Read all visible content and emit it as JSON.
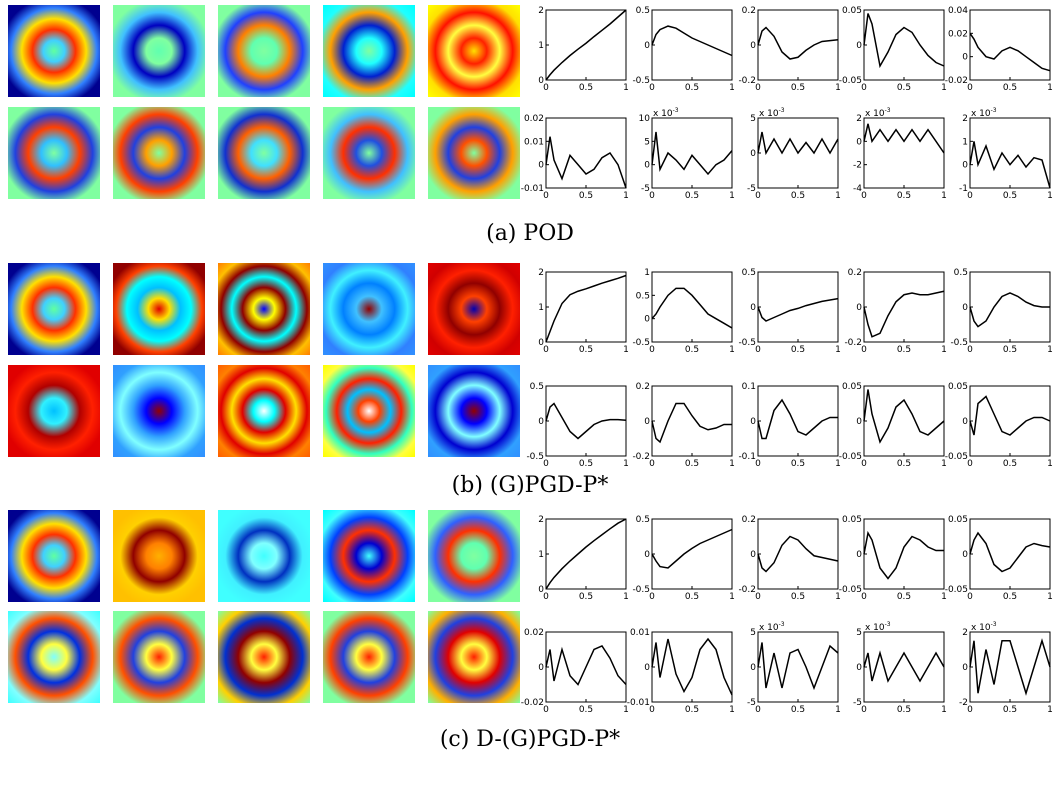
{
  "captions": [
    "(a) POD",
    "(b) (G)PGD-P*",
    "(c) D-(G)PGD-P*"
  ],
  "chart_data": [
    {
      "type": "line",
      "color": "#000000",
      "xlim": [
        0,
        1
      ],
      "xticks": [
        0,
        0.5,
        1
      ],
      "ylim": [
        0,
        2
      ],
      "yticks": [
        0,
        1,
        2
      ],
      "x": [
        0,
        0.05,
        0.1,
        0.2,
        0.3,
        0.4,
        0.5,
        0.6,
        0.7,
        0.8,
        0.9,
        1
      ],
      "values": [
        0,
        0.15,
        0.28,
        0.5,
        0.7,
        0.88,
        1.05,
        1.24,
        1.42,
        1.6,
        1.8,
        2
      ]
    },
    {
      "type": "line",
      "color": "#000000",
      "xlim": [
        0,
        1
      ],
      "xticks": [
        0,
        0.5,
        1
      ],
      "ylim": [
        -0.5,
        0.5
      ],
      "yticks": [
        -0.5,
        0,
        0.5
      ],
      "x": [
        0,
        0.05,
        0.1,
        0.2,
        0.3,
        0.4,
        0.5,
        0.6,
        0.7,
        0.8,
        0.9,
        1
      ],
      "values": [
        0,
        0.15,
        0.22,
        0.27,
        0.24,
        0.17,
        0.1,
        0.05,
        0,
        -0.05,
        -0.1,
        -0.15
      ]
    },
    {
      "type": "line",
      "color": "#000000",
      "xlim": [
        0,
        1
      ],
      "xticks": [
        0,
        0.5,
        1
      ],
      "ylim": [
        -0.2,
        0.2
      ],
      "yticks": [
        -0.2,
        0,
        0.2
      ],
      "x": [
        0,
        0.05,
        0.1,
        0.2,
        0.3,
        0.4,
        0.5,
        0.6,
        0.7,
        0.8,
        0.9,
        1
      ],
      "values": [
        0,
        0.08,
        0.1,
        0.05,
        -0.04,
        -0.08,
        -0.07,
        -0.03,
        0,
        0.02,
        0.025,
        0.03
      ]
    },
    {
      "type": "line",
      "color": "#000000",
      "xlim": [
        0,
        1
      ],
      "xticks": [
        0,
        0.5,
        1
      ],
      "ylim": [
        -0.05,
        0.05
      ],
      "yticks": [
        -0.05,
        0,
        0.05
      ],
      "x": [
        0,
        0.05,
        0.1,
        0.2,
        0.3,
        0.4,
        0.5,
        0.6,
        0.7,
        0.8,
        0.9,
        1
      ],
      "values": [
        0,
        0.045,
        0.03,
        -0.03,
        -0.01,
        0.015,
        0.025,
        0.018,
        0,
        -0.015,
        -0.025,
        -0.03
      ]
    },
    {
      "type": "line",
      "color": "#000000",
      "xlim": [
        0,
        1
      ],
      "xticks": [
        0,
        0.5,
        1
      ],
      "ylim": [
        -0.02,
        0.04
      ],
      "yticks": [
        -0.02,
        0,
        0.02,
        0.04
      ],
      "x": [
        0,
        0.05,
        0.1,
        0.2,
        0.3,
        0.4,
        0.5,
        0.6,
        0.7,
        0.8,
        0.9,
        1
      ],
      "values": [
        0.02,
        0.015,
        0.008,
        0,
        -0.002,
        0.005,
        0.008,
        0.005,
        0,
        -0.005,
        -0.01,
        -0.012
      ]
    },
    {
      "type": "line",
      "color": "#000000",
      "xlim": [
        0,
        1
      ],
      "xticks": [
        0,
        0.5,
        1
      ],
      "ylim": [
        -0.01,
        0.02
      ],
      "yticks": [
        -0.01,
        0,
        0.01,
        0.02
      ],
      "x": [
        0,
        0.05,
        0.1,
        0.2,
        0.3,
        0.4,
        0.5,
        0.6,
        0.7,
        0.8,
        0.9,
        1
      ],
      "values": [
        0,
        0.012,
        0.002,
        -0.006,
        0.004,
        0,
        -0.004,
        -0.002,
        0.003,
        0.005,
        0,
        -0.01
      ]
    },
    {
      "type": "line",
      "color": "#000000",
      "multiplier": "x 10",
      "multiplier_exp": "-3",
      "xlim": [
        0,
        1
      ],
      "xticks": [
        0,
        0.5,
        1
      ],
      "ylim": [
        -5,
        10
      ],
      "yticks": [
        -5,
        0,
        5,
        10
      ],
      "x": [
        0,
        0.05,
        0.1,
        0.2,
        0.3,
        0.4,
        0.5,
        0.6,
        0.7,
        0.8,
        0.9,
        1
      ],
      "values": [
        0,
        7,
        -1,
        2.5,
        1,
        -1,
        2,
        0,
        -2,
        0,
        1,
        3
      ]
    },
    {
      "type": "line",
      "color": "#000000",
      "multiplier": "x 10",
      "multiplier_exp": "-3",
      "xlim": [
        0,
        1
      ],
      "xticks": [
        0,
        0.5,
        1
      ],
      "ylim": [
        -5,
        5
      ],
      "yticks": [
        -5,
        0,
        5
      ],
      "x": [
        0,
        0.05,
        0.1,
        0.2,
        0.3,
        0.4,
        0.5,
        0.6,
        0.7,
        0.8,
        0.9,
        1
      ],
      "values": [
        0,
        3,
        0,
        2,
        0,
        2,
        0,
        1.5,
        0,
        2,
        0,
        2
      ]
    },
    {
      "type": "line",
      "color": "#000000",
      "multiplier": "x 10",
      "multiplier_exp": "-3",
      "xlim": [
        0,
        1
      ],
      "xticks": [
        0,
        0.5,
        1
      ],
      "ylim": [
        -4,
        2
      ],
      "yticks": [
        -4,
        -2,
        0,
        2
      ],
      "x": [
        0,
        0.05,
        0.1,
        0.2,
        0.3,
        0.4,
        0.5,
        0.6,
        0.7,
        0.8,
        0.9,
        1
      ],
      "values": [
        0,
        1.5,
        0,
        1,
        0,
        1,
        0,
        1,
        0,
        1,
        0,
        -1
      ]
    },
    {
      "type": "line",
      "color": "#000000",
      "multiplier": "x 10",
      "multiplier_exp": "-3",
      "xlim": [
        0,
        1
      ],
      "xticks": [
        0,
        0.5,
        1
      ],
      "ylim": [
        -1,
        2
      ],
      "yticks": [
        -1,
        0,
        1,
        2
      ],
      "x": [
        0,
        0.05,
        0.1,
        0.2,
        0.3,
        0.4,
        0.5,
        0.6,
        0.7,
        0.8,
        0.9,
        1
      ],
      "values": [
        0,
        1,
        0,
        0.8,
        -0.2,
        0.5,
        0,
        0.4,
        -0.1,
        0.3,
        0.2,
        -1
      ]
    },
    {
      "type": "line",
      "color": "#000000",
      "xlim": [
        0,
        1
      ],
      "xticks": [
        0,
        0.5,
        1
      ],
      "ylim": [
        0,
        2
      ],
      "yticks": [
        0,
        1,
        2
      ],
      "x": [
        0,
        0.05,
        0.1,
        0.2,
        0.3,
        0.4,
        0.5,
        0.6,
        0.7,
        0.8,
        0.9,
        1
      ],
      "values": [
        0,
        0.3,
        0.6,
        1.1,
        1.35,
        1.45,
        1.52,
        1.6,
        1.68,
        1.75,
        1.82,
        1.9
      ]
    },
    {
      "type": "line",
      "color": "#000000",
      "xlim": [
        0,
        1
      ],
      "xticks": [
        0,
        0.5,
        1
      ],
      "ylim": [
        -0.5,
        1
      ],
      "yticks": [
        -0.5,
        0,
        0.5,
        1
      ],
      "x": [
        0,
        0.05,
        0.1,
        0.2,
        0.3,
        0.4,
        0.5,
        0.6,
        0.7,
        0.8,
        0.9,
        1
      ],
      "values": [
        0,
        0.1,
        0.25,
        0.5,
        0.65,
        0.65,
        0.5,
        0.3,
        0.1,
        0,
        -0.1,
        -0.2
      ]
    },
    {
      "type": "line",
      "color": "#000000",
      "xlim": [
        0,
        1
      ],
      "xticks": [
        0,
        0.5,
        1
      ],
      "ylim": [
        -0.5,
        0.5
      ],
      "yticks": [
        -0.5,
        0,
        0.5
      ],
      "x": [
        0,
        0.05,
        0.1,
        0.2,
        0.3,
        0.4,
        0.5,
        0.6,
        0.7,
        0.8,
        0.9,
        1
      ],
      "values": [
        0,
        -0.15,
        -0.2,
        -0.15,
        -0.1,
        -0.05,
        -0.02,
        0.02,
        0.05,
        0.08,
        0.1,
        0.12
      ]
    },
    {
      "type": "line",
      "color": "#000000",
      "xlim": [
        0,
        1
      ],
      "xticks": [
        0,
        0.5,
        1
      ],
      "ylim": [
        -0.2,
        0.2
      ],
      "yticks": [
        -0.2,
        0,
        0.2
      ],
      "x": [
        0,
        0.05,
        0.1,
        0.2,
        0.3,
        0.4,
        0.5,
        0.6,
        0.7,
        0.8,
        0.9,
        1
      ],
      "values": [
        0,
        -0.1,
        -0.17,
        -0.15,
        -0.05,
        0.03,
        0.07,
        0.08,
        0.07,
        0.07,
        0.08,
        0.09
      ]
    },
    {
      "type": "line",
      "color": "#000000",
      "xlim": [
        0,
        1
      ],
      "xticks": [
        0,
        0.5,
        1
      ],
      "ylim": [
        -0.5,
        0.5
      ],
      "yticks": [
        -0.5,
        0,
        0.5
      ],
      "x": [
        0,
        0.05,
        0.1,
        0.2,
        0.3,
        0.4,
        0.5,
        0.6,
        0.7,
        0.8,
        0.9,
        1
      ],
      "values": [
        0,
        -0.2,
        -0.28,
        -0.2,
        0,
        0.15,
        0.2,
        0.15,
        0.07,
        0.02,
        0,
        0
      ]
    },
    {
      "type": "line",
      "color": "#000000",
      "xlim": [
        0,
        1
      ],
      "xticks": [
        0,
        0.5,
        1
      ],
      "ylim": [
        -0.5,
        0.5
      ],
      "yticks": [
        -0.5,
        0,
        0.5
      ],
      "x": [
        0,
        0.05,
        0.1,
        0.2,
        0.3,
        0.4,
        0.5,
        0.6,
        0.7,
        0.8,
        0.9,
        1
      ],
      "values": [
        0,
        0.2,
        0.25,
        0.05,
        -0.15,
        -0.25,
        -0.15,
        -0.05,
        0,
        0.02,
        0.02,
        0.01
      ]
    },
    {
      "type": "line",
      "color": "#000000",
      "xlim": [
        0,
        1
      ],
      "xticks": [
        0,
        0.5,
        1
      ],
      "ylim": [
        -0.2,
        0.2
      ],
      "yticks": [
        -0.2,
        0,
        0.2
      ],
      "x": [
        0,
        0.05,
        0.1,
        0.2,
        0.3,
        0.4,
        0.5,
        0.6,
        0.7,
        0.8,
        0.9,
        1
      ],
      "values": [
        0,
        -0.1,
        -0.12,
        0,
        0.1,
        0.1,
        0.03,
        -0.03,
        -0.05,
        -0.04,
        -0.02,
        -0.02
      ]
    },
    {
      "type": "line",
      "color": "#000000",
      "xlim": [
        0,
        1
      ],
      "xticks": [
        0,
        0.5,
        1
      ],
      "ylim": [
        -0.1,
        0.1
      ],
      "yticks": [
        -0.1,
        0,
        0.1
      ],
      "x": [
        0,
        0.05,
        0.1,
        0.2,
        0.3,
        0.4,
        0.5,
        0.6,
        0.7,
        0.8,
        0.9,
        1
      ],
      "values": [
        0,
        -0.05,
        -0.05,
        0.03,
        0.06,
        0.02,
        -0.03,
        -0.04,
        -0.02,
        0,
        0.01,
        0.01
      ]
    },
    {
      "type": "line",
      "color": "#000000",
      "xlim": [
        0,
        1
      ],
      "xticks": [
        0,
        0.5,
        1
      ],
      "ylim": [
        -0.05,
        0.05
      ],
      "yticks": [
        -0.05,
        0,
        0.05
      ],
      "x": [
        0,
        0.05,
        0.1,
        0.2,
        0.3,
        0.4,
        0.5,
        0.6,
        0.7,
        0.8,
        0.9,
        1
      ],
      "values": [
        0,
        0.045,
        0.01,
        -0.03,
        -0.01,
        0.02,
        0.03,
        0.01,
        -0.015,
        -0.02,
        -0.01,
        0
      ]
    },
    {
      "type": "line",
      "color": "#000000",
      "xlim": [
        0,
        1
      ],
      "xticks": [
        0,
        0.5,
        1
      ],
      "ylim": [
        -0.05,
        0.05
      ],
      "yticks": [
        -0.05,
        0,
        0.05
      ],
      "x": [
        0,
        0.05,
        0.1,
        0.2,
        0.3,
        0.4,
        0.5,
        0.6,
        0.7,
        0.8,
        0.9,
        1
      ],
      "values": [
        0,
        -0.02,
        0.025,
        0.035,
        0.01,
        -0.015,
        -0.02,
        -0.01,
        0,
        0.005,
        0.005,
        0
      ]
    },
    {
      "type": "line",
      "color": "#000000",
      "xlim": [
        0,
        1
      ],
      "xticks": [
        0,
        0.5,
        1
      ],
      "ylim": [
        0,
        2
      ],
      "yticks": [
        0,
        1,
        2
      ],
      "x": [
        0,
        0.05,
        0.1,
        0.2,
        0.3,
        0.4,
        0.5,
        0.6,
        0.7,
        0.8,
        0.9,
        1
      ],
      "values": [
        0,
        0.18,
        0.33,
        0.58,
        0.8,
        1.0,
        1.2,
        1.38,
        1.55,
        1.72,
        1.88,
        2
      ]
    },
    {
      "type": "line",
      "color": "#000000",
      "xlim": [
        0,
        1
      ],
      "xticks": [
        0,
        0.5,
        1
      ],
      "ylim": [
        -0.5,
        0.5
      ],
      "yticks": [
        -0.5,
        0,
        0.5
      ],
      "x": [
        0,
        0.05,
        0.1,
        0.2,
        0.3,
        0.4,
        0.5,
        0.6,
        0.7,
        0.8,
        0.9,
        1
      ],
      "values": [
        0,
        -0.1,
        -0.18,
        -0.2,
        -0.1,
        0,
        0.08,
        0.15,
        0.2,
        0.25,
        0.3,
        0.35
      ]
    },
    {
      "type": "line",
      "color": "#000000",
      "xlim": [
        0,
        1
      ],
      "xticks": [
        0,
        0.5,
        1
      ],
      "ylim": [
        -0.2,
        0.2
      ],
      "yticks": [
        -0.2,
        0,
        0.2
      ],
      "x": [
        0,
        0.05,
        0.1,
        0.2,
        0.3,
        0.4,
        0.5,
        0.6,
        0.7,
        0.8,
        0.9,
        1
      ],
      "values": [
        0,
        -0.08,
        -0.1,
        -0.05,
        0.05,
        0.1,
        0.08,
        0.03,
        -0.01,
        -0.02,
        -0.03,
        -0.04
      ]
    },
    {
      "type": "line",
      "color": "#000000",
      "xlim": [
        0,
        1
      ],
      "xticks": [
        0,
        0.5,
        1
      ],
      "ylim": [
        -0.05,
        0.05
      ],
      "yticks": [
        -0.05,
        0,
        0.05
      ],
      "x": [
        0,
        0.05,
        0.1,
        0.2,
        0.3,
        0.4,
        0.5,
        0.6,
        0.7,
        0.8,
        0.9,
        1
      ],
      "values": [
        0,
        0.03,
        0.02,
        -0.02,
        -0.035,
        -0.02,
        0.01,
        0.025,
        0.02,
        0.01,
        0.005,
        0.005
      ]
    },
    {
      "type": "line",
      "color": "#000000",
      "xlim": [
        0,
        1
      ],
      "xticks": [
        0,
        0.5,
        1
      ],
      "ylim": [
        -0.05,
        0.05
      ],
      "yticks": [
        -0.05,
        0,
        0.05
      ],
      "x": [
        0,
        0.05,
        0.1,
        0.2,
        0.3,
        0.4,
        0.5,
        0.6,
        0.7,
        0.8,
        0.9,
        1
      ],
      "values": [
        0,
        0.02,
        0.03,
        0.015,
        -0.015,
        -0.025,
        -0.02,
        -0.005,
        0.01,
        0.015,
        0.012,
        0.01
      ]
    },
    {
      "type": "line",
      "color": "#000000",
      "xlim": [
        0,
        1
      ],
      "xticks": [
        0,
        0.5,
        1
      ],
      "ylim": [
        -0.02,
        0.02
      ],
      "yticks": [
        -0.02,
        0,
        0.02
      ],
      "x": [
        0,
        0.05,
        0.1,
        0.2,
        0.3,
        0.4,
        0.5,
        0.6,
        0.7,
        0.8,
        0.9,
        1
      ],
      "values": [
        0,
        0.01,
        -0.008,
        0.01,
        -0.005,
        -0.01,
        0,
        0.01,
        0.012,
        0.005,
        -0.005,
        -0.01
      ]
    },
    {
      "type": "line",
      "color": "#000000",
      "xlim": [
        0,
        1
      ],
      "xticks": [
        0,
        0.5,
        1
      ],
      "ylim": [
        -0.01,
        0.01
      ],
      "yticks": [
        -0.01,
        0,
        0.01
      ],
      "x": [
        0,
        0.05,
        0.1,
        0.2,
        0.3,
        0.4,
        0.5,
        0.6,
        0.7,
        0.8,
        0.9,
        1
      ],
      "values": [
        0,
        0.007,
        -0.003,
        0.008,
        -0.002,
        -0.007,
        -0.003,
        0.005,
        0.008,
        0.005,
        -0.003,
        -0.008
      ]
    },
    {
      "type": "line",
      "color": "#000000",
      "multiplier": "x 10",
      "multiplier_exp": "-3",
      "xlim": [
        0,
        1
      ],
      "xticks": [
        0,
        0.5,
        1
      ],
      "ylim": [
        -5,
        5
      ],
      "yticks": [
        -5,
        0,
        5
      ],
      "x": [
        0,
        0.05,
        0.1,
        0.2,
        0.3,
        0.4,
        0.5,
        0.6,
        0.7,
        0.8,
        0.9,
        1
      ],
      "values": [
        0,
        3.5,
        -3,
        2,
        -3,
        2,
        2.5,
        0,
        -3,
        0,
        3,
        2
      ]
    },
    {
      "type": "line",
      "color": "#000000",
      "multiplier": "x 10",
      "multiplier_exp": "-3",
      "xlim": [
        0,
        1
      ],
      "xticks": [
        0,
        0.5,
        1
      ],
      "ylim": [
        -5,
        5
      ],
      "yticks": [
        -5,
        0,
        5
      ],
      "x": [
        0,
        0.05,
        0.1,
        0.2,
        0.3,
        0.4,
        0.5,
        0.6,
        0.7,
        0.8,
        0.9,
        1
      ],
      "values": [
        0,
        2,
        -2,
        2,
        -2,
        0,
        2,
        0,
        -2,
        0,
        2,
        0
      ]
    },
    {
      "type": "line",
      "color": "#000000",
      "multiplier": "x 10",
      "multiplier_exp": "-3",
      "xlim": [
        0,
        1
      ],
      "xticks": [
        0,
        0.5,
        1
      ],
      "ylim": [
        -2,
        2
      ],
      "yticks": [
        -2,
        0,
        2
      ],
      "x": [
        0,
        0.05,
        0.1,
        0.2,
        0.3,
        0.4,
        0.5,
        0.6,
        0.7,
        0.8,
        0.9,
        1
      ],
      "values": [
        0,
        1.5,
        -1.5,
        1,
        -1,
        1.5,
        1.5,
        0,
        -1.5,
        0,
        1.5,
        0
      ]
    }
  ]
}
